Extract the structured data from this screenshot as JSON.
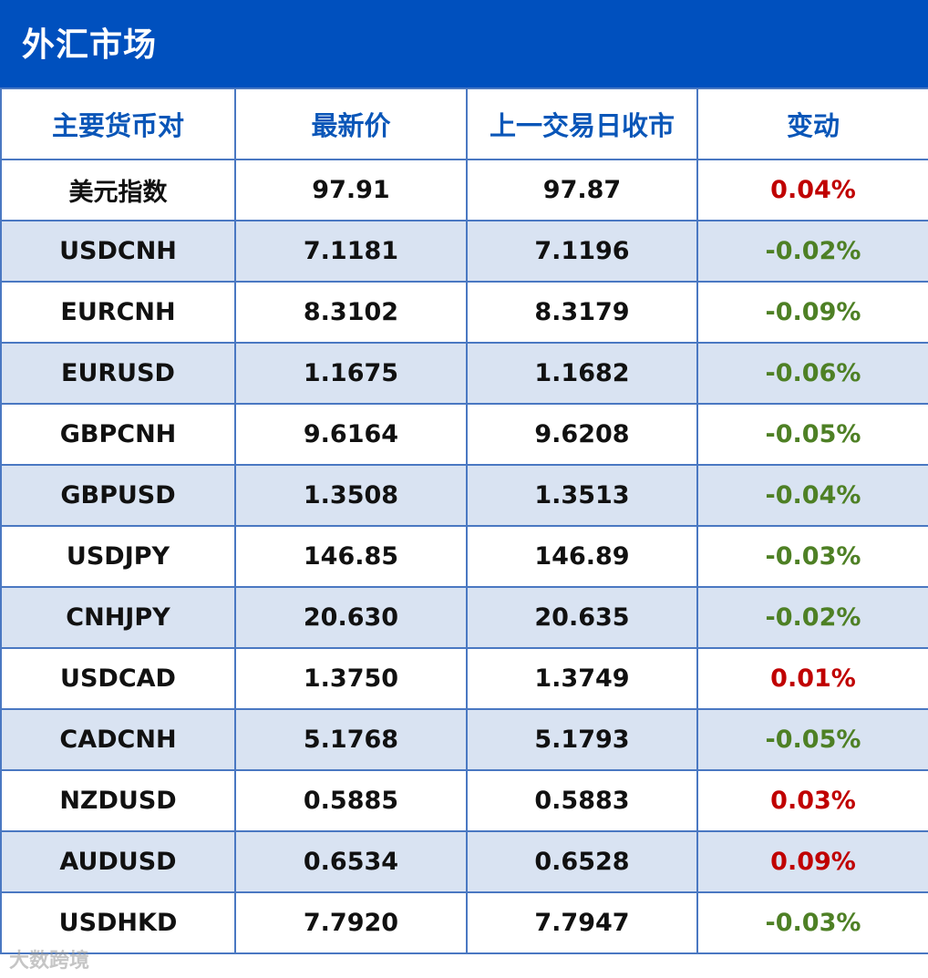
{
  "header": {
    "title": "外汇市场",
    "bg_color": "#0050BE"
  },
  "table": {
    "columns": [
      "主要货币对",
      "最新价",
      "上一交易日收市",
      "变动"
    ],
    "rows": [
      {
        "pair": "美元指数",
        "latest": "97.91",
        "prev_close": "97.87",
        "change": "0.04%",
        "direction": "up"
      },
      {
        "pair": "USDCNH",
        "latest": "7.1181",
        "prev_close": "7.1196",
        "change": "-0.02%",
        "direction": "down"
      },
      {
        "pair": "EURCNH",
        "latest": "8.3102",
        "prev_close": "8.3179",
        "change": "-0.09%",
        "direction": "down"
      },
      {
        "pair": "EURUSD",
        "latest": "1.1675",
        "prev_close": "1.1682",
        "change": "-0.06%",
        "direction": "down"
      },
      {
        "pair": "GBPCNH",
        "latest": "9.6164",
        "prev_close": "9.6208",
        "change": "-0.05%",
        "direction": "down"
      },
      {
        "pair": "GBPUSD",
        "latest": "1.3508",
        "prev_close": "1.3513",
        "change": "-0.04%",
        "direction": "down"
      },
      {
        "pair": "USDJPY",
        "latest": "146.85",
        "prev_close": "146.89",
        "change": "-0.03%",
        "direction": "down"
      },
      {
        "pair": "CNHJPY",
        "latest": "20.630",
        "prev_close": "20.635",
        "change": "-0.02%",
        "direction": "down"
      },
      {
        "pair": "USDCAD",
        "latest": "1.3750",
        "prev_close": "1.3749",
        "change": "0.01%",
        "direction": "up"
      },
      {
        "pair": "CADCNH",
        "latest": "5.1768",
        "prev_close": "5.1793",
        "change": "-0.05%",
        "direction": "down"
      },
      {
        "pair": "NZDUSD",
        "latest": "0.5885",
        "prev_close": "0.5883",
        "change": "0.03%",
        "direction": "up"
      },
      {
        "pair": "AUDUSD",
        "latest": "0.6534",
        "prev_close": "0.6528",
        "change": "0.09%",
        "direction": "up"
      },
      {
        "pair": "USDHKD",
        "latest": "7.7920",
        "prev_close": "7.7947",
        "change": "-0.03%",
        "direction": "down"
      }
    ],
    "colors": {
      "header_text": "#0A56B8",
      "up": "#C00000",
      "down": "#4E8025",
      "stripe": "#D9E3F2",
      "border": "#4A78C2"
    }
  },
  "watermark": {
    "text": "大数跨境"
  }
}
